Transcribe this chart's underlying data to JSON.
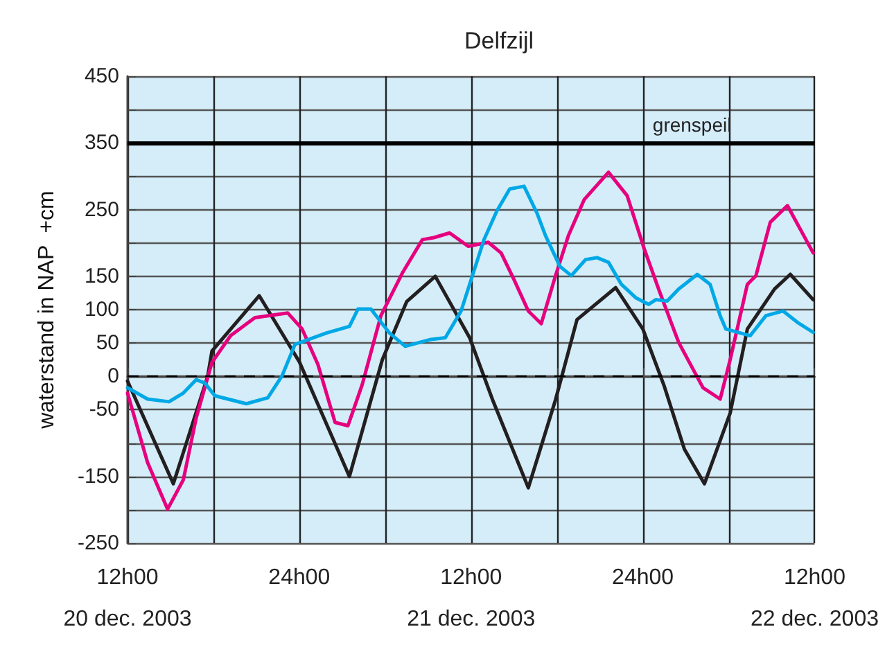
{
  "chart_data": {
    "type": "line",
    "title": "Delfzijl",
    "ylabel": "waterstand in NAP  +cm",
    "xlim": [
      "2003-12-20T12:00",
      "2003-12-22T12:00"
    ],
    "xticks": [
      {
        "value": "2003-12-20T12:00",
        "label": "12h00\n20 dec. 2003"
      },
      {
        "value": "2003-12-20T18:00",
        "label": null
      },
      {
        "value": "2003-12-21T00:00",
        "label": "24h00"
      },
      {
        "value": "2003-12-21T06:00",
        "label": null
      },
      {
        "value": "2003-12-21T12:00",
        "label": "12h00\n21 dec. 2003"
      },
      {
        "value": "2003-12-21T18:00",
        "label": null
      },
      {
        "value": "2003-12-22T00:00",
        "label": "24h00"
      },
      {
        "value": "2003-12-22T06:00",
        "label": null
      },
      {
        "value": "2003-12-22T12:00",
        "label": "12h00\n22 dec. 2003"
      }
    ],
    "ylim": [
      -250,
      450
    ],
    "yticks": [
      450,
      {
        "value": 400,
        "label": null
      },
      350,
      {
        "value": 300,
        "label": null
      },
      250,
      {
        "value": 200,
        "label": null
      },
      150,
      100,
      50,
      0,
      -50,
      {
        "value": -100,
        "label": null
      },
      -150,
      {
        "value": -200,
        "label": null
      },
      -250
    ],
    "grid": true,
    "marker": "none",
    "line_style": "solid",
    "ref_lines": [
      {
        "axis": "y",
        "value": 350,
        "label": "grenspeil",
        "color": "#000000",
        "line_style": "solid"
      },
      {
        "axis": "y",
        "value": 0,
        "color": "#000000",
        "line_style": "dashed"
      }
    ],
    "series": [
      {
        "color": "#231f20",
        "x": [
          "2003-12-20T12:00",
          "2003-12-20T15:12",
          "2003-12-20T17:36",
          "2003-12-20T17:54",
          "2003-12-20T21:12",
          "2003-12-21T00:00",
          "2003-12-21T03:30",
          "2003-12-21T05:48",
          "2003-12-21T07:30",
          "2003-12-21T09:30",
          "2003-12-21T11:54",
          "2003-12-21T13:30",
          "2003-12-21T16:00",
          "2003-12-21T17:54",
          "2003-12-21T19:24",
          "2003-12-21T22:06",
          "2003-12-22T00:00",
          "2003-12-22T01:30",
          "2003-12-22T02:54",
          "2003-12-22T04:18",
          "2003-12-22T06:06",
          "2003-12-22T07:18",
          "2003-12-22T09:12",
          "2003-12-22T10:18",
          "2003-12-22T11:54"
        ],
        "values": [
          -7,
          -161,
          0,
          38,
          121,
          22,
          -150,
          25,
          112,
          150,
          58,
          -35,
          -167,
          -35,
          85,
          133,
          71,
          -15,
          -109,
          -161,
          -55,
          71,
          131,
          153,
          115
        ]
      },
      {
        "color": "#e6007e",
        "x": [
          "2003-12-20T12:00",
          "2003-12-20T13:24",
          "2003-12-20T14:48",
          "2003-12-20T15:54",
          "2003-12-20T16:48",
          "2003-12-20T17:54",
          "2003-12-20T19:12",
          "2003-12-20T20:54",
          "2003-12-20T23:12",
          "2003-12-21T00:12",
          "2003-12-21T01:18",
          "2003-12-21T02:30",
          "2003-12-21T03:24",
          "2003-12-21T04:24",
          "2003-12-21T05:42",
          "2003-12-21T07:12",
          "2003-12-21T08:36",
          "2003-12-21T09:24",
          "2003-12-21T10:30",
          "2003-12-21T11:48",
          "2003-12-21T13:12",
          "2003-12-21T14:06",
          "2003-12-21T15:00",
          "2003-12-21T16:00",
          "2003-12-21T16:54",
          "2003-12-21T17:54",
          "2003-12-21T18:48",
          "2003-12-21T19:54",
          "2003-12-21T21:36",
          "2003-12-21T22:54",
          "2003-12-22T00:06",
          "2003-12-22T01:06",
          "2003-12-22T01:30",
          "2003-12-22T02:30",
          "2003-12-22T04:12",
          "2003-12-22T05:24",
          "2003-12-22T06:06",
          "2003-12-22T07:18",
          "2003-12-22T07:54",
          "2003-12-22T08:54",
          "2003-12-22T10:06",
          "2003-12-22T11:54"
        ],
        "values": [
          -25,
          -129,
          -199,
          -155,
          -62,
          21,
          61,
          88,
          95,
          71,
          18,
          -69,
          -74,
          -12,
          91,
          155,
          205,
          208,
          215,
          195,
          201,
          185,
          145,
          98,
          79,
          151,
          211,
          265,
          306,
          271,
          191,
          131,
          108,
          51,
          -17,
          -34,
          25,
          138,
          151,
          231,
          256,
          185
        ]
      },
      {
        "color": "#00a8e6",
        "x": [
          "2003-12-20T12:00",
          "2003-12-20T13:24",
          "2003-12-20T14:54",
          "2003-12-20T15:54",
          "2003-12-20T16:48",
          "2003-12-20T17:24",
          "2003-12-20T18:06",
          "2003-12-20T20:18",
          "2003-12-20T21:48",
          "2003-12-20T22:48",
          "2003-12-20T23:42",
          "2003-12-21T01:00",
          "2003-12-21T01:54",
          "2003-12-21T03:30",
          "2003-12-21T04:06",
          "2003-12-21T05:00",
          "2003-12-21T06:18",
          "2003-12-21T07:24",
          "2003-12-21T09:06",
          "2003-12-21T10:12",
          "2003-12-21T11:18",
          "2003-12-21T12:54",
          "2003-12-21T13:48",
          "2003-12-21T14:42",
          "2003-12-21T15:42",
          "2003-12-21T16:36",
          "2003-12-21T17:12",
          "2003-12-21T18:12",
          "2003-12-21T19:00",
          "2003-12-21T20:00",
          "2003-12-21T20:48",
          "2003-12-21T21:36",
          "2003-12-21T22:30",
          "2003-12-21T23:30",
          "2003-12-22T00:24",
          "2003-12-22T00:54",
          "2003-12-22T01:42",
          "2003-12-22T02:30",
          "2003-12-22T03:06",
          "2003-12-22T03:48",
          "2003-12-22T04:42",
          "2003-12-22T05:24",
          "2003-12-22T05:48",
          "2003-12-22T07:30",
          "2003-12-22T08:36",
          "2003-12-22T09:48",
          "2003-12-22T10:48",
          "2003-12-22T11:54"
        ],
        "values": [
          -17,
          -34,
          -38,
          -25,
          -5,
          -10,
          -29,
          -41,
          -32,
          1,
          48,
          58,
          65,
          75,
          101,
          101,
          65,
          45,
          55,
          58,
          98,
          205,
          248,
          281,
          285,
          245,
          211,
          165,
          151,
          175,
          178,
          171,
          138,
          118,
          108,
          115,
          113,
          131,
          141,
          153,
          138,
          91,
          71,
          61,
          91,
          98,
          81,
          66
        ]
      }
    ]
  }
}
